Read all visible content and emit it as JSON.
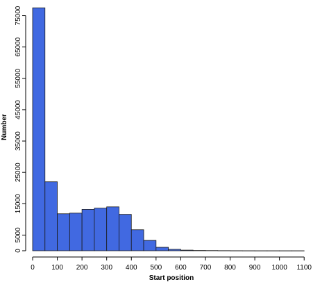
{
  "chart_data": {
    "type": "bar",
    "subtype": "histogram",
    "title": "",
    "xlabel": "Start position",
    "ylabel": "Number",
    "bin_width": 50,
    "bin_starts": [
      0,
      50,
      100,
      150,
      200,
      250,
      300,
      350,
      400,
      450,
      500,
      550,
      600,
      650,
      700,
      750,
      800,
      850,
      900,
      950,
      1000,
      1050
    ],
    "values": [
      77500,
      22000,
      11800,
      12000,
      13200,
      13600,
      14000,
      11600,
      6700,
      3300,
      1100,
      450,
      200,
      100,
      70,
      40,
      20,
      10,
      5,
      5,
      3,
      2
    ],
    "xlim": [
      0,
      1150
    ],
    "ylim": [
      0,
      78000
    ],
    "x_ticks": [
      0,
      100,
      200,
      300,
      400,
      500,
      600,
      700,
      800,
      900,
      1000,
      1100
    ],
    "y_ticks": [
      0,
      5000,
      15000,
      25000,
      35000,
      45000,
      55000,
      65000,
      75000
    ],
    "bar_color": "#4169E1",
    "edge_color": "#1a1a1a",
    "grid": false,
    "legend": "none"
  }
}
